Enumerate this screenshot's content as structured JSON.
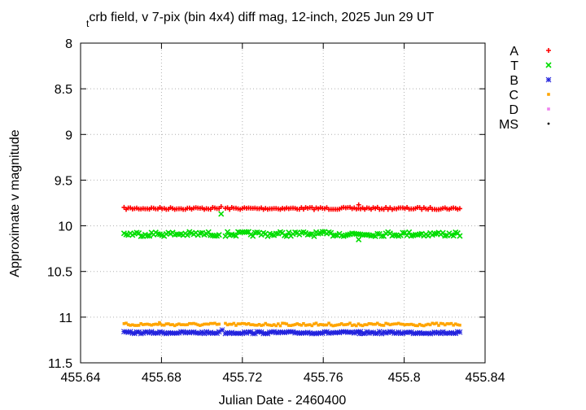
{
  "chart_data": {
    "type": "scatter",
    "title_sub": "t",
    "title_main": "crb field, v 7-pix (bin 4x4) diff mag, 12-inch, 2025 Jun 29 UT",
    "xlabel": "Julian Date - 2460400",
    "ylabel": "Approximate v magnitude",
    "xlim": [
      455.64,
      455.84
    ],
    "ylim": [
      11.5,
      8
    ],
    "y_inverted": true,
    "grid": true,
    "legend_position": "right",
    "x_ticks": [
      "455.64",
      "455.68",
      "455.72",
      "455.76",
      "455.8",
      "455.84"
    ],
    "y_ticks": [
      "8",
      "8.5",
      "9",
      "9.5",
      "10",
      "10.5",
      "11",
      "11.5"
    ],
    "x_sampling": {
      "start": 455.6615,
      "end": 455.8275,
      "count": 160
    },
    "series": [
      {
        "name": "A",
        "color": "#ff0000",
        "marker": "plus",
        "baseline": 9.81,
        "noise": 0.012,
        "outliers": [
          {
            "x": 455.7095,
            "y": 9.79
          },
          {
            "x": 455.7775,
            "y": 9.77
          }
        ]
      },
      {
        "name": "T",
        "color": "#00dd00",
        "marker": "cross",
        "baseline": 10.09,
        "noise": 0.025,
        "outliers": [
          {
            "x": 455.7095,
            "y": 9.87
          },
          {
            "x": 455.7775,
            "y": 10.15
          }
        ]
      },
      {
        "name": "B",
        "color": "#2222dd",
        "marker": "star",
        "baseline": 11.17,
        "noise": 0.012,
        "outliers": [
          {
            "x": 455.71,
            "y": 11.14
          },
          {
            "x": 455.778,
            "y": 11.18
          }
        ]
      },
      {
        "name": "C",
        "color": "#ffa500",
        "marker": "square",
        "baseline": 11.08,
        "noise": 0.015,
        "outliers": [
          {
            "x": 455.679,
            "y": 11.06
          }
        ]
      },
      {
        "name": "D",
        "color": "#ee82ee",
        "marker": "square",
        "baseline": null,
        "noise": 0,
        "outliers": []
      },
      {
        "name": "MS",
        "color": "#000000",
        "marker": "dot",
        "baseline": null,
        "noise": 0,
        "outliers": []
      }
    ]
  }
}
